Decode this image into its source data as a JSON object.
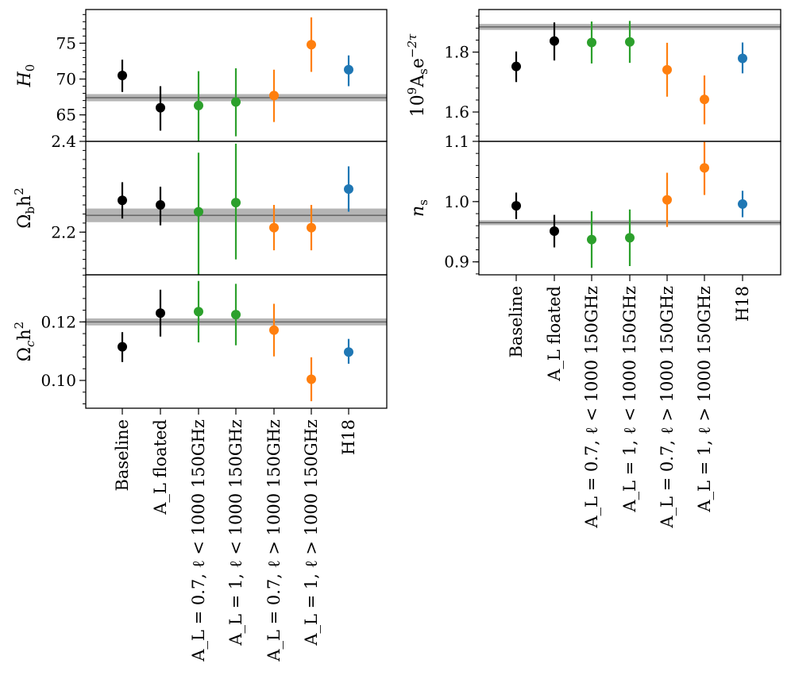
{
  "categories": [
    "Baseline",
    "A_L floated",
    "A_L = 0.7, ℓ < 1000 150GHz",
    "A_L = 1, ℓ < 1000 150GHz",
    "A_L = 0.7, ℓ > 1000 150GHz",
    "A_L = 1, ℓ > 1000 150GHz",
    "H18"
  ],
  "colors": [
    "#000000",
    "#000000",
    "#2ca02c",
    "#2ca02c",
    "#ff7f0e",
    "#ff7f0e",
    "#1f77b4"
  ],
  "chart_data": [
    {
      "type": "scatter",
      "ylabel": "H_0",
      "ylim": [
        61.3,
        79.7
      ],
      "yticks": [
        65,
        70,
        75
      ],
      "yticklabels": [
        "65",
        "70",
        "75"
      ],
      "reference_band": {
        "center": 67.4,
        "low": 66.9,
        "high": 67.9
      },
      "values": [
        70.5,
        66.0,
        66.3,
        66.8,
        67.7,
        74.8,
        71.3
      ],
      "err_low": [
        2.3,
        3.2,
        5.2,
        4.8,
        3.7,
        3.8,
        2.3
      ],
      "err_high": [
        2.2,
        3.0,
        4.8,
        4.7,
        3.6,
        3.8,
        2.0
      ]
    },
    {
      "type": "scatter",
      "ylabel": "Ω_b h²",
      "ylim": [
        2.106,
        2.4
      ],
      "yticks": [
        2.2,
        2.4
      ],
      "yticklabels": [
        "2.2",
        "2.4"
      ],
      "reference_band": {
        "center": 2.237,
        "low": 2.222,
        "high": 2.252
      },
      "values": [
        2.27,
        2.26,
        2.245,
        2.265,
        2.21,
        2.21,
        2.295
      ],
      "err_low": [
        0.04,
        0.045,
        0.14,
        0.125,
        0.05,
        0.05,
        0.05
      ],
      "err_high": [
        0.04,
        0.04,
        0.13,
        0.13,
        0.05,
        0.05,
        0.05
      ]
    },
    {
      "type": "scatter",
      "ylabel": "Ω_c h²",
      "ylim": [
        0.0905,
        0.1361
      ],
      "yticks": [
        0.1,
        0.12
      ],
      "yticklabels": [
        "0.10",
        "0.12"
      ],
      "reference_band": {
        "center": 0.12,
        "low": 0.1188,
        "high": 0.1212
      },
      "values": [
        0.1115,
        0.123,
        0.1235,
        0.1225,
        0.1172,
        0.1004,
        0.1097
      ],
      "err_low": [
        0.0052,
        0.008,
        0.0105,
        0.0105,
        0.009,
        0.0075,
        0.004
      ],
      "err_high": [
        0.005,
        0.008,
        0.0105,
        0.0105,
        0.009,
        0.0075,
        0.0045
      ]
    },
    {
      "type": "scatter",
      "ylabel": "10⁹A_s e^(−2τ)",
      "ylim": [
        1.502,
        1.942
      ],
      "yticks": [
        1.6,
        1.8
      ],
      "yticklabels": [
        "1.6",
        "1.8"
      ],
      "reference_band": {
        "center": 1.884,
        "low": 1.874,
        "high": 1.894
      },
      "values": [
        1.752,
        1.837,
        1.832,
        1.834,
        1.741,
        1.642,
        1.779
      ],
      "err_low": [
        0.052,
        0.065,
        0.07,
        0.07,
        0.09,
        0.083,
        0.05
      ],
      "err_high": [
        0.05,
        0.062,
        0.07,
        0.07,
        0.09,
        0.08,
        0.053
      ]
    },
    {
      "type": "scatter",
      "ylabel": "n_s",
      "ylim": [
        0.8785,
        1.1
      ],
      "yticks": [
        0.9,
        1.0,
        1.1
      ],
      "yticklabels": [
        "0.9",
        "1.0",
        "1.1"
      ],
      "reference_band": {
        "center": 0.965,
        "low": 0.961,
        "high": 0.969
      },
      "values": [
        0.993,
        0.951,
        0.937,
        0.94,
        1.003,
        1.056,
        0.996
      ],
      "err_low": [
        0.022,
        0.027,
        0.047,
        0.047,
        0.045,
        0.045,
        0.022
      ],
      "err_high": [
        0.022,
        0.027,
        0.047,
        0.047,
        0.045,
        0.045,
        0.022
      ]
    }
  ]
}
